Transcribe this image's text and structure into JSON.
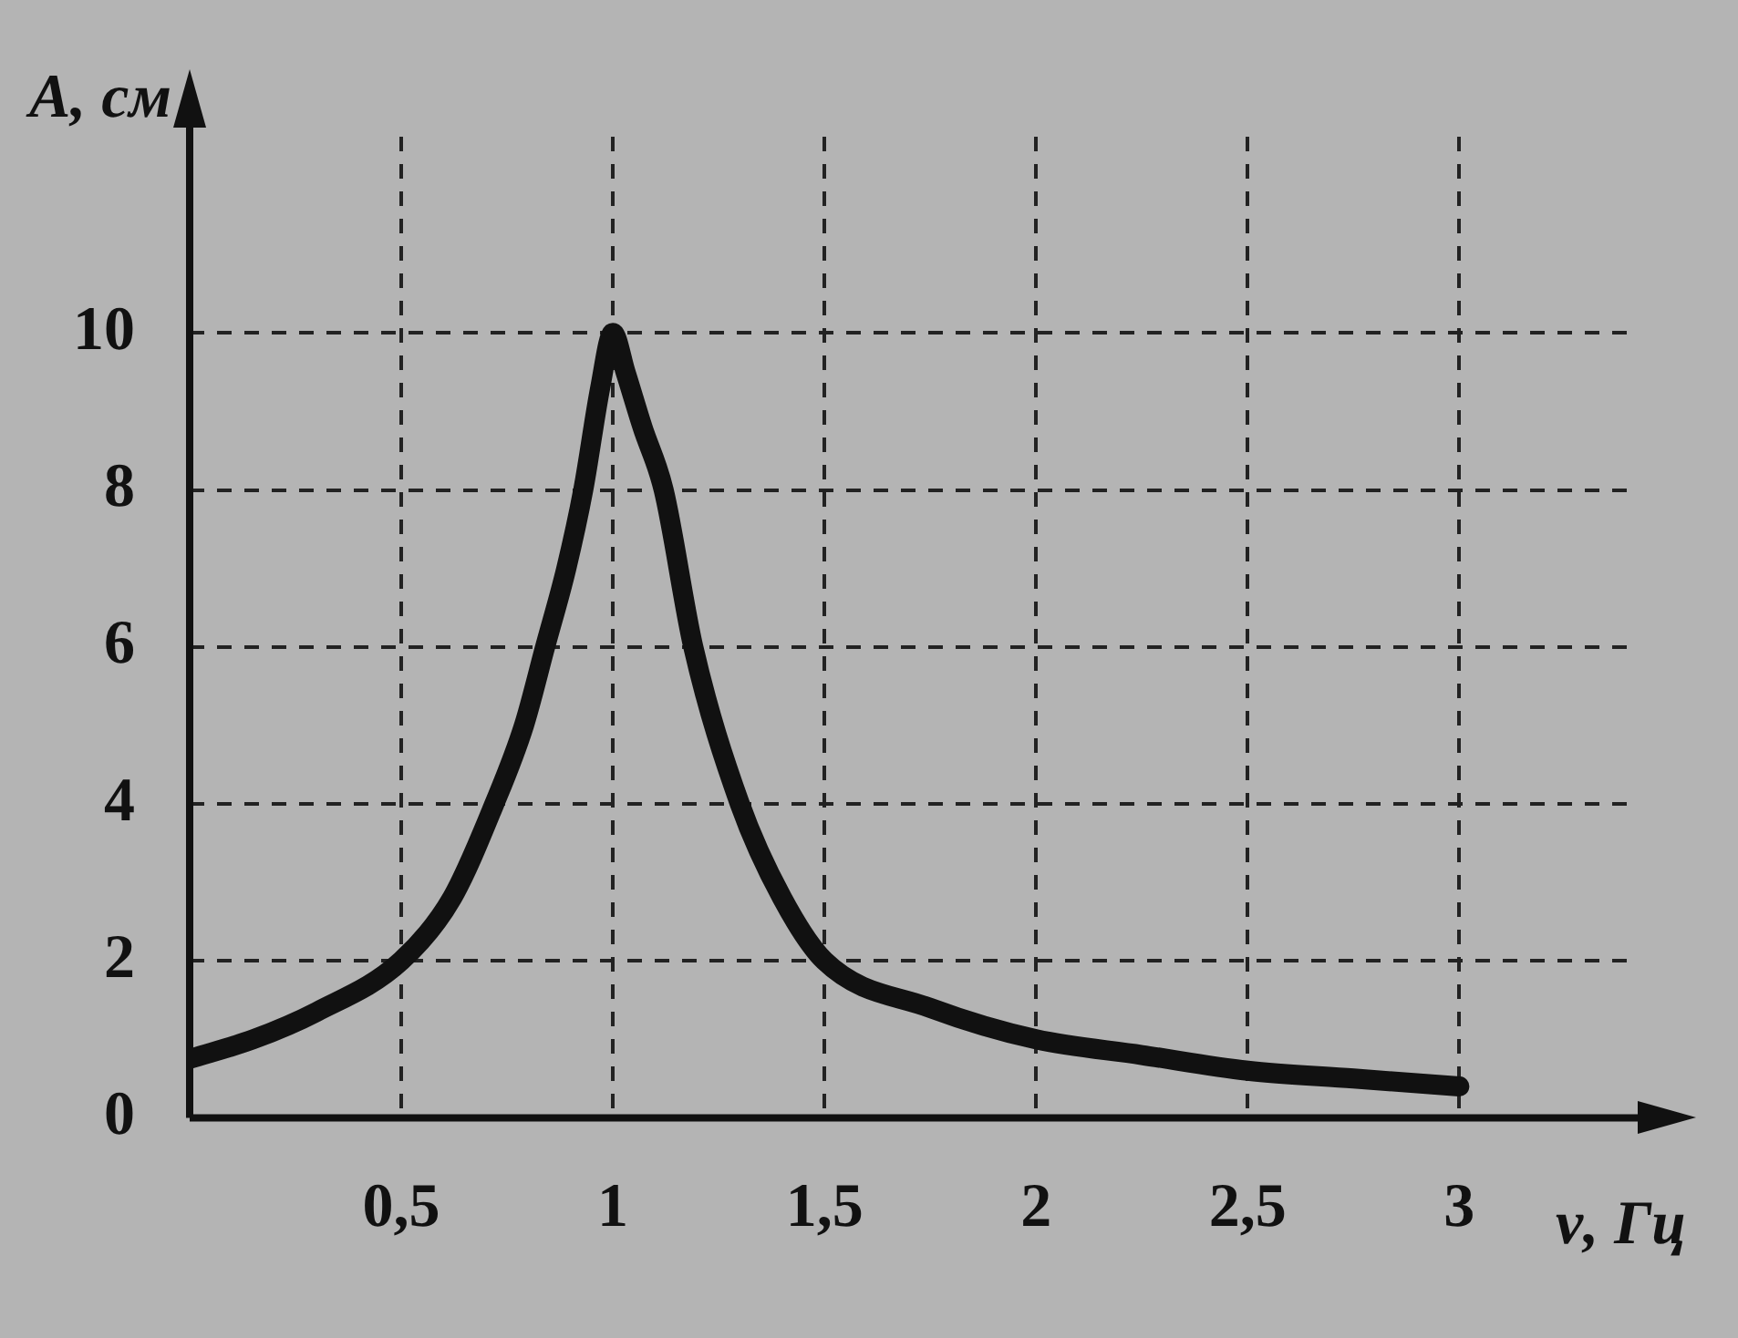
{
  "chart_data": {
    "type": "line",
    "xlabel": "ν, Гц",
    "ylabel": "A, см",
    "x": [
      0,
      0.15,
      0.3,
      0.5,
      0.62,
      0.72,
      0.79,
      0.84,
      0.89,
      0.93,
      0.97,
      1.0,
      1.03,
      1.07,
      1.12,
      1.19,
      1.3,
      1.4,
      1.5,
      1.75,
      2.0,
      2.25,
      2.5,
      2.75,
      3.0
    ],
    "series": [
      {
        "color": "#111111",
        "values": [
          0.75,
          1.0,
          1.35,
          2.0,
          2.8,
          4.0,
          5.0,
          6.0,
          7.0,
          8.0,
          9.3,
          10.0,
          9.5,
          8.8,
          8.0,
          6.0,
          4.0,
          2.8,
          2.0,
          1.4,
          1.0,
          0.8,
          0.6,
          0.5,
          0.4
        ]
      }
    ],
    "xlim": [
      0,
      3.4
    ],
    "ylim": [
      0,
      12.5
    ],
    "xticks": [
      {
        "value": 0.5,
        "label": "0,5"
      },
      1,
      {
        "value": 1.5,
        "label": "1,5"
      },
      2,
      {
        "value": 2.5,
        "label": "2,5"
      },
      3
    ],
    "yticks": [
      0,
      2,
      4,
      6,
      8,
      10
    ],
    "grid": true,
    "legend": false,
    "marker": "none",
    "line_style": "solid"
  }
}
